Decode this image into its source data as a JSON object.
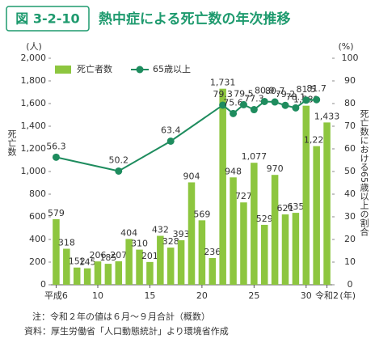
{
  "chart_data": {
    "type": "bar",
    "badge": "図 3-2-10",
    "title": "熱中症による死亡数の年次推移",
    "y_unit": "(人)",
    "y2_unit": "(%)",
    "x_unit": "(年)",
    "ylabel": "死亡数",
    "y2label": "死亡数における65歳以上の割合",
    "x": [
      6,
      7,
      8,
      9,
      10,
      11,
      12,
      13,
      14,
      15,
      16,
      17,
      18,
      19,
      20,
      21,
      22,
      23,
      24,
      25,
      26,
      27,
      28,
      29,
      30,
      31,
      32
    ],
    "xlim": [
      5.5,
      32.5
    ],
    "xticks": [
      {
        "value": 6,
        "label": "平成6"
      },
      10,
      15,
      20,
      25,
      30,
      {
        "value": 32,
        "label": "令和2"
      }
    ],
    "ylim": [
      0,
      2000
    ],
    "yticks": [
      0,
      200,
      400,
      600,
      800,
      {
        "value": 1000,
        "label": "1,000"
      },
      {
        "value": 1200,
        "label": "1,200"
      },
      {
        "value": 1400,
        "label": "1,400"
      },
      {
        "value": 1600,
        "label": "1,600"
      },
      {
        "value": 1800,
        "label": "1,800"
      },
      {
        "value": 2000,
        "label": "2,000"
      }
    ],
    "y2lim": [
      0,
      100
    ],
    "y2ticks": [
      0,
      10,
      20,
      30,
      40,
      50,
      60,
      70,
      80,
      90,
      100
    ],
    "series": [
      {
        "name": "死亡者数",
        "color": "#8dc63f",
        "values": [
          579,
          318,
          152,
          145,
          206,
          185,
          207,
          404,
          310,
          201,
          432,
          328,
          393,
          904,
          569,
          236,
          1731,
          948,
          727,
          1077,
          529,
          970,
          621,
          635,
          1581,
          1224,
          1433
        ],
        "value_labels": [
          "579",
          "318",
          "152",
          "145",
          "206",
          "185",
          "207",
          "404",
          "310",
          "201",
          "432",
          "328",
          "393",
          "904",
          "569",
          "236",
          "1,731",
          "948",
          "727",
          "1,077",
          "529",
          "970",
          "621",
          "635",
          "1,581",
          "1,224",
          "1,433"
        ]
      },
      {
        "name": "65歳以上",
        "color": "#1e8c5e",
        "axis": "y2",
        "type": "line",
        "x": [
          6,
          12,
          17,
          22,
          23,
          24,
          25,
          26,
          27,
          28,
          29,
          30,
          31
        ],
        "values": [
          56.3,
          50.2,
          63.4,
          79.3,
          75.6,
          79.5,
          77.3,
          80.9,
          80.7,
          79.2,
          78.1,
          81.5,
          81.7
        ]
      }
    ],
    "notes": [
      "注：令和２年の値は６月～９月合計（概数）",
      "資料：厚生労働省「人口動態統計」より環境省作成"
    ]
  }
}
